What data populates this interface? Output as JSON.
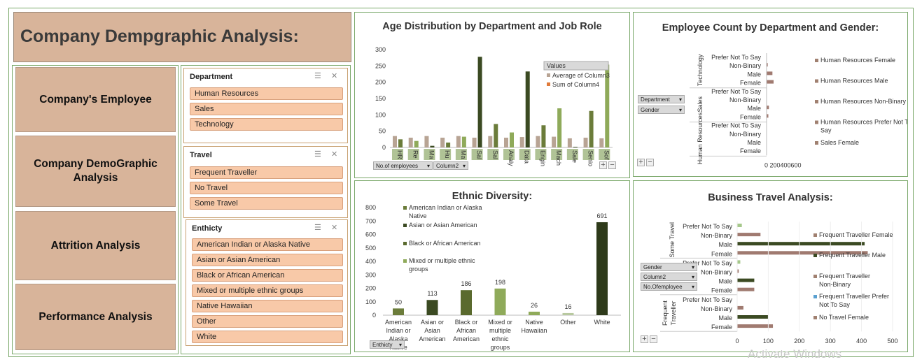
{
  "page": {
    "title": "Company Dempgraphic Analysis:",
    "watermark": "Activate Windows"
  },
  "nav": [
    {
      "label": "Company's Employee"
    },
    {
      "label": "Company DemoGraphic Analysis"
    },
    {
      "label": "Attrition Analysis"
    },
    {
      "label": "Performance Analysis"
    }
  ],
  "slicers": {
    "department": {
      "header": "Department",
      "items": [
        "Human Resources",
        "Sales",
        "Technology"
      ]
    },
    "travel": {
      "header": "Travel",
      "items": [
        "Frequent Traveller",
        "No Travel",
        "Some Travel"
      ]
    },
    "ethnicity": {
      "header": "Enthicty",
      "items": [
        "American Indian or Alaska Native",
        "Asian or Asian American",
        "Black or African American",
        "Mixed or multiple ethnic groups",
        "Native Hawaiian",
        "Other",
        "White"
      ]
    }
  },
  "colors": {
    "accent_green": "#7aa86a",
    "dark_green": "#3b4a22",
    "olive": "#6b7c3a",
    "light_green": "#8faa5a",
    "tan": "#b8a494",
    "mauve": "#a07a70",
    "slicer_item": "#f8c9a8",
    "nav_bg": "#d8b49a"
  },
  "charts": {
    "age": {
      "title": "Age Distribution by Department and Job Role",
      "yticks": [
        "300",
        "250",
        "200",
        "150",
        "100",
        "50",
        "0"
      ],
      "legend_title": "Values",
      "legend": [
        "Average of Column3",
        "Sum of Column4"
      ],
      "xcats": [
        "HR",
        "Re",
        "Ma",
        "Hu",
        "Ma",
        "Sal",
        "Sal",
        "Analy",
        "Data",
        "Engin",
        "Mach",
        "Sale",
        "Senio",
        "Sof"
      ],
      "fields": [
        "No.of employees",
        "Column2"
      ],
      "chart_data": {
        "type": "bar",
        "series": [
          {
            "name": "Average of Column3",
            "values": [
              35,
              30,
              35,
              30,
              35,
              30,
              35,
              30,
              32,
              35,
              33,
              28,
              30,
              28
            ]
          },
          {
            "name": "Sum of Column4",
            "values": [
              25,
              20,
              5,
              15,
              33,
              278,
              72,
              46,
              233,
              68,
              120,
              2,
              112,
              254
            ]
          }
        ],
        "ylim": [
          0,
          300
        ]
      }
    },
    "gender": {
      "title": "Employee Count by Department and Gender:",
      "groups": [
        {
          "dept": "Technology",
          "rows": [
            "Prefer Not To Say",
            "Non-Binary",
            "Male",
            "Female"
          ]
        },
        {
          "dept": "Sales",
          "rows": [
            "Prefer Not To Say",
            "Non-Binary",
            "Male",
            "Female"
          ]
        },
        {
          "dept": "Human Resources",
          "rows": [
            "Prefer Not To Say",
            "Non-Binary",
            "Male",
            "Female"
          ]
        }
      ],
      "xticks": "0  200400600",
      "fields": [
        "Department",
        "Gender"
      ],
      "legend": [
        "Human Resources Female",
        "Human Resources Male",
        "Human Resources Non-Binary",
        "Human Resources Prefer Not To Say",
        "Sales Female"
      ],
      "chart_data": {
        "type": "bar",
        "values": [
          [
            0,
            20,
            100,
            120
          ],
          [
            0,
            0,
            40,
            30
          ],
          [
            0,
            0,
            0,
            0
          ]
        ]
      }
    },
    "ethnic": {
      "title": "Ethnic Diversity:",
      "yticks": [
        "800",
        "700",
        "600",
        "500",
        "400",
        "300",
        "200",
        "100",
        "0"
      ],
      "legend": [
        "American Indian or Alaska Native",
        "Asian or Asian American",
        "Black or African American",
        "Mixed or multiple ethnic groups"
      ],
      "field": "Enthicty",
      "chart_data": {
        "type": "bar",
        "categories": [
          "American Indian or Alaska Native",
          "Asian or Asian American",
          "Black or African American",
          "Mixed or multiple ethnic groups",
          "Native Hawaiian",
          "Other",
          "White"
        ],
        "cat_labels": [
          [
            "American",
            "Indian or",
            "Alaska",
            "Native"
          ],
          [
            "Asian or",
            "Asian",
            "American"
          ],
          [
            "Black or",
            "African",
            "American"
          ],
          [
            "Mixed or",
            "multiple",
            "ethnic",
            "groups"
          ],
          [
            "Native",
            "Hawaiian"
          ],
          [
            "Other"
          ],
          [
            "White"
          ]
        ],
        "values": [
          50,
          113,
          186,
          198,
          26,
          16,
          691
        ],
        "ylim": [
          0,
          800
        ]
      }
    },
    "travel": {
      "title": "Business Travel Analysis:",
      "groups": [
        {
          "name": "Some Travel",
          "rows": [
            "Prefer Not To Say",
            "Non-Binary",
            "Male",
            "Female"
          ]
        },
        {
          "name": "",
          "rows": [
            "Prefer Not To Say",
            "Non-Binary",
            "Male",
            "Female"
          ]
        },
        {
          "name": "Frequent Traveller",
          "rows": [
            "Prefer Not To Say",
            "Non-Binary",
            "Male",
            "Female"
          ]
        }
      ],
      "xticks": [
        "0",
        "100",
        "200",
        "300",
        "400",
        "500"
      ],
      "fields": [
        "Gender",
        "Column2",
        "No.Ofemployee"
      ],
      "legend": [
        "Frequent Traveller Female",
        "Frequent Traveller Male",
        "Frequent Traveller Non-Binary",
        "Frequent Traveller Prefer Not To Say",
        "No Travel Female"
      ],
      "chart_data": {
        "type": "bar",
        "values": [
          [
            15,
            75,
            410,
            420
          ],
          [
            10,
            5,
            55,
            55
          ],
          [
            0,
            20,
            100,
            115
          ]
        ],
        "xlim": [
          0,
          500
        ]
      }
    }
  }
}
